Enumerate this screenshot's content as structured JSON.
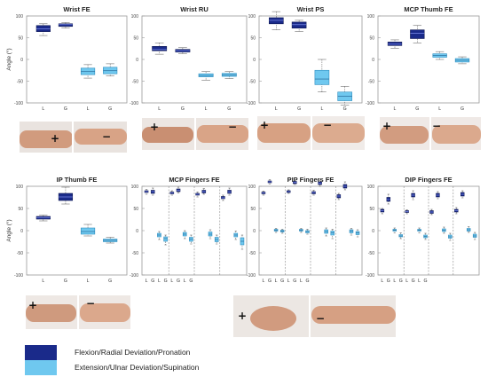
{
  "colors": {
    "flexion": "#1a2a8a",
    "extension": "#6fc8ef",
    "flexion_edge": "#0d1650",
    "extension_edge": "#2f8fc0",
    "skin": "#d9a68a"
  },
  "legend": [
    {
      "label": "Flexion/Radial Deviation/Pronation",
      "color_key": "flexion"
    },
    {
      "label": "Extension/Ulnar Deviation/Supination",
      "color_key": "extension"
    }
  ],
  "photo_signs": {
    "plus": "+",
    "minus": "−"
  },
  "chart_data": [
    {
      "type": "boxplot",
      "title": "Wrist FE",
      "ylabel": "Angle (°)",
      "ylim": [
        -100,
        100
      ],
      "yticks": [
        100,
        50,
        0,
        -50,
        -100
      ],
      "categories": [
        "L",
        "G",
        "L",
        "G"
      ],
      "boxes": [
        {
          "series": "flexion",
          "min": 55,
          "q1": 64,
          "median": 70,
          "q3": 78,
          "max": 82
        },
        {
          "series": "flexion",
          "min": 72,
          "q1": 76,
          "median": 80,
          "q3": 82,
          "max": 85
        },
        {
          "series": "extension",
          "min": -43,
          "q1": -35,
          "median": -28,
          "q3": -20,
          "max": -12
        },
        {
          "series": "extension",
          "min": -38,
          "q1": -33,
          "median": -26,
          "q3": -18,
          "max": -10
        }
      ]
    },
    {
      "type": "boxplot",
      "title": "Wrist RU",
      "ylabel": "",
      "ylim": [
        -100,
        100
      ],
      "yticks": [
        100,
        50,
        0,
        -50,
        -100
      ],
      "categories": [
        "L",
        "G",
        "L",
        "G"
      ],
      "boxes": [
        {
          "series": "flexion",
          "min": 12,
          "q1": 20,
          "median": 24,
          "q3": 30,
          "max": 38
        },
        {
          "series": "flexion",
          "min": 13,
          "q1": 17,
          "median": 20,
          "q3": 23,
          "max": 27
        },
        {
          "series": "extension",
          "min": -48,
          "q1": -40,
          "median": -37,
          "q3": -33,
          "max": -28
        },
        {
          "series": "extension",
          "min": -44,
          "q1": -39,
          "median": -36,
          "q3": -32,
          "max": -28
        }
      ]
    },
    {
      "type": "boxplot",
      "title": "Wrist PS",
      "ylabel": "",
      "ylim": [
        -100,
        100
      ],
      "yticks": [
        100,
        50,
        0,
        -50,
        -100
      ],
      "categories": [
        "L",
        "G",
        "L",
        "G"
      ],
      "boxes": [
        {
          "series": "flexion",
          "min": 68,
          "q1": 82,
          "median": 90,
          "q3": 96,
          "max": 110
        },
        {
          "series": "flexion",
          "min": 64,
          "q1": 72,
          "median": 80,
          "q3": 86,
          "max": 90
        },
        {
          "series": "extension",
          "min": -75,
          "q1": -58,
          "median": -45,
          "q3": -25,
          "max": 0
        },
        {
          "series": "extension",
          "min": -105,
          "q1": -95,
          "median": -85,
          "q3": -75,
          "max": -62
        }
      ]
    },
    {
      "type": "boxplot",
      "title": "MCP Thumb FE",
      "ylabel": "",
      "ylim": [
        -100,
        100
      ],
      "yticks": [
        100,
        50,
        0,
        -50,
        -100
      ],
      "categories": [
        "L",
        "G",
        "L",
        "G"
      ],
      "boxes": [
        {
          "series": "flexion",
          "min": 26,
          "q1": 32,
          "median": 35,
          "q3": 40,
          "max": 45
        },
        {
          "series": "flexion",
          "min": 38,
          "q1": 48,
          "median": 60,
          "q3": 68,
          "max": 78
        },
        {
          "series": "extension",
          "min": 0,
          "q1": 5,
          "median": 9,
          "q3": 13,
          "max": 18
        },
        {
          "series": "extension",
          "min": -10,
          "q1": -6,
          "median": -2,
          "q3": 2,
          "max": 6
        }
      ]
    },
    {
      "type": "boxplot",
      "title": "IP Thumb FE",
      "ylabel": "Angle (°)",
      "ylim": [
        -100,
        100
      ],
      "yticks": [
        100,
        50,
        0,
        -50,
        -100
      ],
      "categories": [
        "L",
        "G",
        "L",
        "G"
      ],
      "boxes": [
        {
          "series": "flexion",
          "min": 22,
          "q1": 26,
          "median": 29,
          "q3": 32,
          "max": 35
        },
        {
          "series": "flexion",
          "min": 60,
          "q1": 68,
          "median": 76,
          "q3": 84,
          "max": 98
        },
        {
          "series": "extension",
          "min": -12,
          "q1": -8,
          "median": -2,
          "q3": 6,
          "max": 14
        },
        {
          "series": "extension",
          "min": -28,
          "q1": -25,
          "median": -22,
          "q3": -19,
          "max": -15
        }
      ]
    },
    {
      "type": "boxplot",
      "title": "MCP Fingers FE",
      "ylabel": "",
      "ylim": [
        -100,
        100
      ],
      "yticks": [
        100,
        50,
        0,
        -50,
        -100
      ],
      "categories": [
        "L",
        "G",
        "L",
        "G",
        "L",
        "G",
        "L",
        "G"
      ],
      "groups": 4,
      "boxes": [
        {
          "series": "flexion",
          "min": 82,
          "q1": 86,
          "median": 88,
          "q3": 90,
          "max": 93
        },
        {
          "series": "flexion",
          "min": 80,
          "q1": 84,
          "median": 88,
          "q3": 91,
          "max": 96
        },
        {
          "series": "extension",
          "min": -20,
          "q1": -14,
          "median": -10,
          "q3": -6,
          "max": -2
        },
        {
          "series": "extension",
          "min": -32,
          "q1": -24,
          "median": -18,
          "q3": -14,
          "max": -10
        },
        {
          "series": "flexion",
          "min": 80,
          "q1": 83,
          "median": 85,
          "q3": 87,
          "max": 90
        },
        {
          "series": "flexion",
          "min": 85,
          "q1": 88,
          "median": 91,
          "q3": 94,
          "max": 98
        },
        {
          "series": "extension",
          "min": -18,
          "q1": -12,
          "median": -8,
          "q3": -4,
          "max": 0
        },
        {
          "series": "extension",
          "min": -30,
          "q1": -24,
          "median": -19,
          "q3": -15,
          "max": -10
        },
        {
          "series": "flexion",
          "min": 76,
          "q1": 80,
          "median": 82,
          "q3": 84,
          "max": 87
        },
        {
          "series": "flexion",
          "min": 82,
          "q1": 85,
          "median": 88,
          "q3": 91,
          "max": 95
        },
        {
          "series": "extension",
          "min": -18,
          "q1": -12,
          "median": -8,
          "q3": -3,
          "max": 2
        },
        {
          "series": "extension",
          "min": -30,
          "q1": -25,
          "median": -20,
          "q3": -15,
          "max": -10
        },
        {
          "series": "flexion",
          "min": 68,
          "q1": 72,
          "median": 74,
          "q3": 77,
          "max": 80
        },
        {
          "series": "flexion",
          "min": 80,
          "q1": 84,
          "median": 87,
          "q3": 91,
          "max": 96
        },
        {
          "series": "extension",
          "min": -20,
          "q1": -14,
          "median": -10,
          "q3": -6,
          "max": -1
        },
        {
          "series": "extension",
          "min": -42,
          "q1": -32,
          "median": -24,
          "q3": -16,
          "max": -10
        }
      ]
    },
    {
      "type": "boxplot",
      "title": "PIP Fingers FE",
      "ylabel": "",
      "ylim": [
        -100,
        100
      ],
      "yticks": [
        100,
        50,
        0,
        -50,
        -100
      ],
      "categories": [
        "L",
        "G",
        "L",
        "G",
        "L",
        "G",
        "L",
        "G"
      ],
      "groups": 4,
      "boxes": [
        {
          "series": "flexion",
          "min": 80,
          "q1": 83,
          "median": 85,
          "q3": 87,
          "max": 89
        },
        {
          "series": "flexion",
          "min": 105,
          "q1": 108,
          "median": 110,
          "q3": 112,
          "max": 115
        },
        {
          "series": "extension",
          "min": -4,
          "q1": -1,
          "median": 1,
          "q3": 3,
          "max": 5
        },
        {
          "series": "extension",
          "min": -6,
          "q1": -3,
          "median": -1,
          "q3": 1,
          "max": 3
        },
        {
          "series": "flexion",
          "min": 84,
          "q1": 86,
          "median": 88,
          "q3": 90,
          "max": 92
        },
        {
          "series": "flexion",
          "min": 104,
          "q1": 106,
          "median": 109,
          "q3": 111,
          "max": 114
        },
        {
          "series": "extension",
          "min": -4,
          "q1": -1,
          "median": 1,
          "q3": 3,
          "max": 5
        },
        {
          "series": "extension",
          "min": -8,
          "q1": -5,
          "median": -2,
          "q3": 0,
          "max": 3
        },
        {
          "series": "flexion",
          "min": 80,
          "q1": 83,
          "median": 86,
          "q3": 88,
          "max": 91
        },
        {
          "series": "flexion",
          "min": 100,
          "q1": 104,
          "median": 107,
          "q3": 110,
          "max": 114
        },
        {
          "series": "extension",
          "min": -12,
          "q1": -6,
          "median": -2,
          "q3": 2,
          "max": 6
        },
        {
          "series": "extension",
          "min": -18,
          "q1": -10,
          "median": -5,
          "q3": -1,
          "max": 3
        },
        {
          "series": "flexion",
          "min": 70,
          "q1": 74,
          "median": 78,
          "q3": 81,
          "max": 84
        },
        {
          "series": "flexion",
          "min": 92,
          "q1": 96,
          "median": 100,
          "q3": 104,
          "max": 110
        },
        {
          "series": "extension",
          "min": -10,
          "q1": -5,
          "median": -1,
          "q3": 2,
          "max": 5
        },
        {
          "series": "extension",
          "min": -14,
          "q1": -9,
          "median": -5,
          "q3": -2,
          "max": 2
        }
      ]
    },
    {
      "type": "boxplot",
      "title": "DIP Fingers FE",
      "ylabel": "",
      "ylim": [
        -100,
        100
      ],
      "yticks": [
        100,
        50,
        0,
        -50,
        -100
      ],
      "categories": [
        "L",
        "G",
        "L",
        "G",
        "L",
        "G",
        "L",
        "G"
      ],
      "groups": 4,
      "boxes": [
        {
          "series": "flexion",
          "min": 38,
          "q1": 42,
          "median": 45,
          "q3": 48,
          "max": 50
        },
        {
          "series": "flexion",
          "min": 60,
          "q1": 66,
          "median": 70,
          "q3": 75,
          "max": 82
        },
        {
          "series": "extension",
          "min": -5,
          "q1": -1,
          "median": 1,
          "q3": 3,
          "max": 6
        },
        {
          "series": "extension",
          "min": -18,
          "q1": -14,
          "median": -12,
          "q3": -9,
          "max": -5
        },
        {
          "series": "flexion",
          "min": 38,
          "q1": 41,
          "median": 43,
          "q3": 45,
          "max": 47
        },
        {
          "series": "flexion",
          "min": 70,
          "q1": 76,
          "median": 80,
          "q3": 84,
          "max": 90
        },
        {
          "series": "extension",
          "min": -5,
          "q1": -1,
          "median": 1,
          "q3": 3,
          "max": 6
        },
        {
          "series": "extension",
          "min": -20,
          "q1": -16,
          "median": -13,
          "q3": -10,
          "max": -6
        },
        {
          "series": "flexion",
          "min": 36,
          "q1": 39,
          "median": 42,
          "q3": 45,
          "max": 48
        },
        {
          "series": "flexion",
          "min": 72,
          "q1": 76,
          "median": 80,
          "q3": 84,
          "max": 88
        },
        {
          "series": "extension",
          "min": -6,
          "q1": -2,
          "median": 1,
          "q3": 4,
          "max": 8
        },
        {
          "series": "extension",
          "min": -22,
          "q1": -17,
          "median": -14,
          "q3": -10,
          "max": -6
        },
        {
          "series": "flexion",
          "min": 38,
          "q1": 42,
          "median": 45,
          "q3": 48,
          "max": 52
        },
        {
          "series": "flexion",
          "min": 74,
          "q1": 78,
          "median": 82,
          "q3": 86,
          "max": 90
        },
        {
          "series": "extension",
          "min": -4,
          "q1": -1,
          "median": 2,
          "q3": 5,
          "max": 9
        },
        {
          "series": "extension",
          "min": -20,
          "q1": -15,
          "median": -12,
          "q3": -8,
          "max": -4
        }
      ]
    }
  ]
}
